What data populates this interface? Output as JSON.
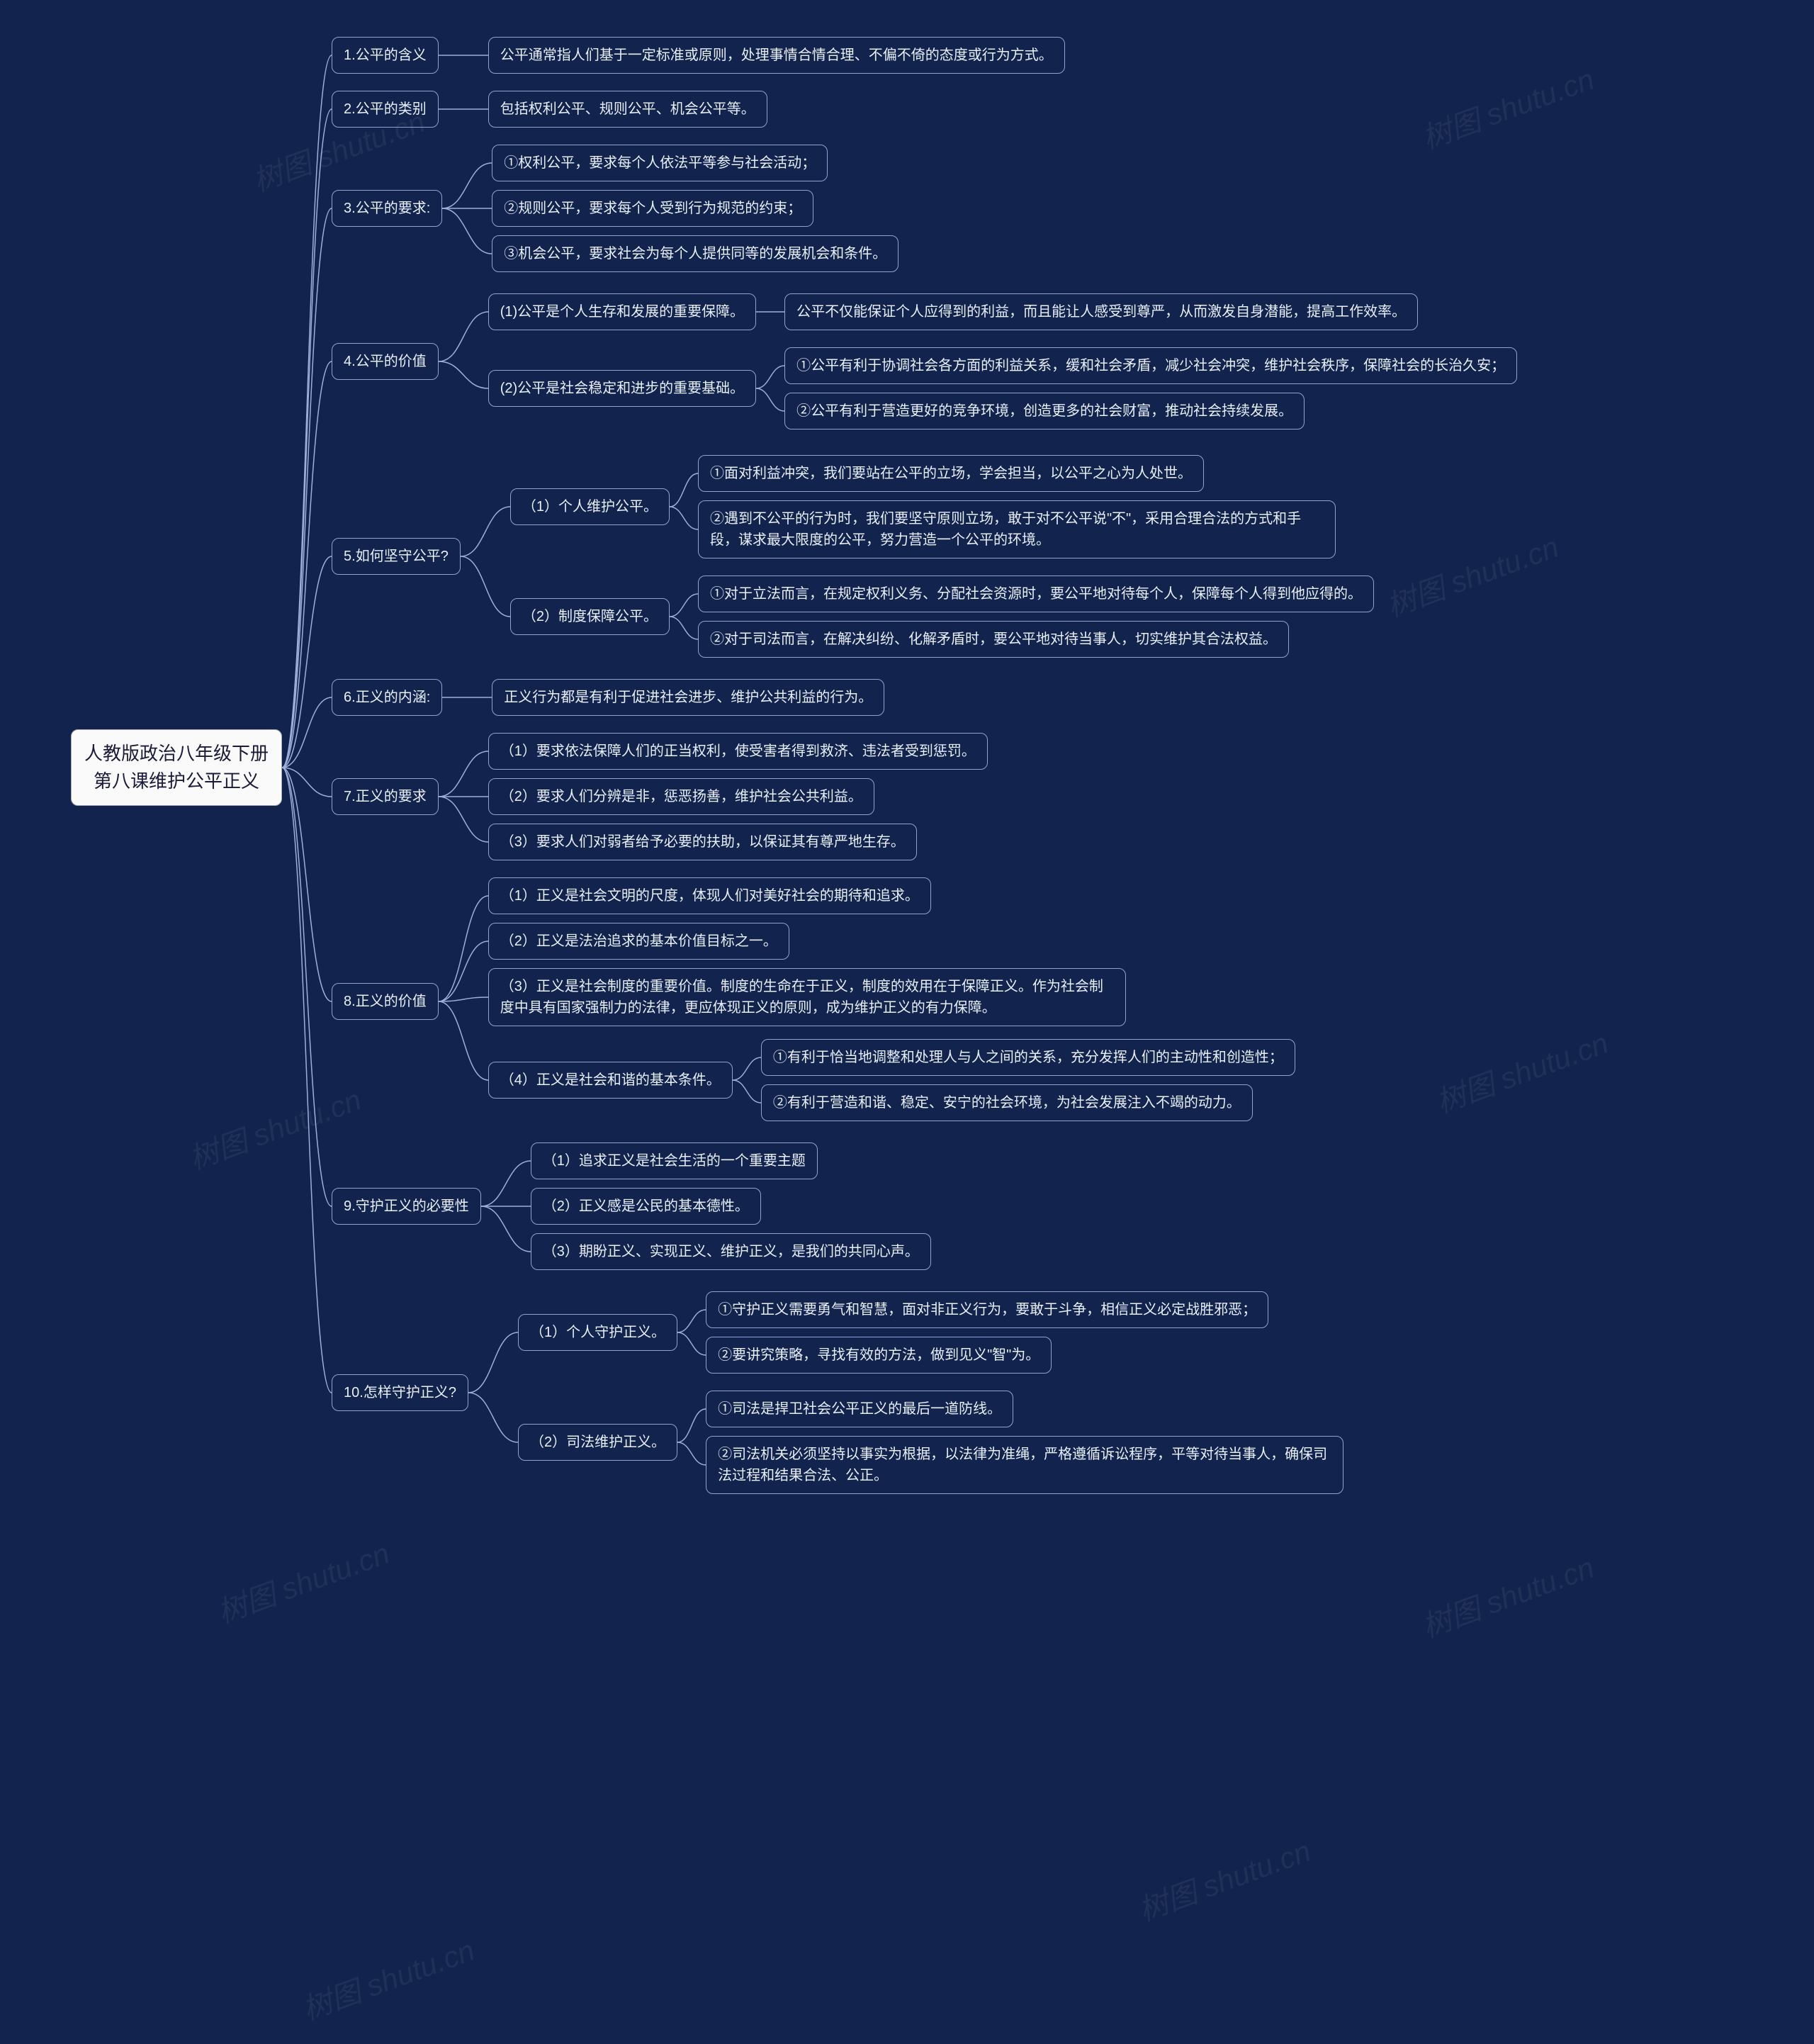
{
  "background_color": "#12234d",
  "root_bg": "#fafafa",
  "root_fg": "#1a1a3a",
  "node_border": "#8fa3d6",
  "node_fg": "#e8eefb",
  "line_color": "#9db0dc",
  "watermark_text": "树图 shutu.cn",
  "root": {
    "title_line1": "人教版政治八年级下册",
    "title_line2": "第八课维护公平正义"
  },
  "branches": [
    {
      "label": "1.公平的含义",
      "children": [
        {
          "label": "公平通常指人们基于一定标准或原则，处理事情合情合理、不偏不倚的态度或行为方式。"
        }
      ]
    },
    {
      "label": "2.公平的类别",
      "children": [
        {
          "label": "包括权利公平、规则公平、机会公平等。"
        }
      ]
    },
    {
      "label": "3.公平的要求:",
      "children": [
        {
          "label": "①权利公平，要求每个人依法平等参与社会活动；"
        },
        {
          "label": "②规则公平，要求每个人受到行为规范的约束；"
        },
        {
          "label": "③机会公平，要求社会为每个人提供同等的发展机会和条件。"
        }
      ]
    },
    {
      "label": "4.公平的价值",
      "children": [
        {
          "label": "(1)公平是个人生存和发展的重要保障。",
          "children": [
            {
              "label": "公平不仅能保证个人应得到的利益，而且能让人感受到尊严，从而激发自身潜能，提高工作效率。"
            }
          ]
        },
        {
          "label": "(2)公平是社会稳定和进步的重要基础。",
          "children": [
            {
              "label": "①公平有利于协调社会各方面的利益关系，缓和社会矛盾，减少社会冲突，维护社会秩序，保障社会的长治久安；"
            },
            {
              "label": "②公平有利于营造更好的竞争环境，创造更多的社会财富，推动社会持续发展。"
            }
          ]
        }
      ]
    },
    {
      "label": "5.如何坚守公平?",
      "children": [
        {
          "label": "（1）个人维护公平。",
          "children": [
            {
              "label": "①面对利益冲突，我们要站在公平的立场，学会担当，以公平之心为人处世。"
            },
            {
              "label": "②遇到不公平的行为时，我们要坚守原则立场，敢于对不公平说\"不\"，采用合理合法的方式和手段，谋求最大限度的公平，努力营造一个公平的环境。",
              "wrap": true
            }
          ]
        },
        {
          "label": "（2）制度保障公平。",
          "children": [
            {
              "label": "①对于立法而言，在规定权利义务、分配社会资源时，要公平地对待每个人，保障每个人得到他应得的。"
            },
            {
              "label": "②对于司法而言，在解决纠纷、化解矛盾时，要公平地对待当事人，切实维护其合法权益。"
            }
          ]
        }
      ]
    },
    {
      "label": "6.正义的内涵:",
      "children": [
        {
          "label": "正义行为都是有利于促进社会进步、维护公共利益的行为。"
        }
      ]
    },
    {
      "label": "7.正义的要求",
      "children": [
        {
          "label": "（1）要求依法保障人们的正当权利，使受害者得到救济、违法者受到惩罚。"
        },
        {
          "label": "（2）要求人们分辨是非，惩恶扬善，维护社会公共利益。"
        },
        {
          "label": "（3）要求人们对弱者给予必要的扶助，以保证其有尊严地生存。"
        }
      ]
    },
    {
      "label": "8.正义的价值",
      "children": [
        {
          "label": "（1）正义是社会文明的尺度，体现人们对美好社会的期待和追求。"
        },
        {
          "label": "（2）正义是法治追求的基本价值目标之一。"
        },
        {
          "label": "（3）正义是社会制度的重要价值。制度的生命在于正义，制度的效用在于保障正义。作为社会制度中具有国家强制力的法律，更应体现正义的原则，成为维护正义的有力保障。",
          "wrap": true
        },
        {
          "label": "（4）正义是社会和谐的基本条件。",
          "children": [
            {
              "label": "①有利于恰当地调整和处理人与人之间的关系，充分发挥人们的主动性和创造性；"
            },
            {
              "label": "②有利于营造和谐、稳定、安宁的社会环境，为社会发展注入不竭的动力。"
            }
          ]
        }
      ]
    },
    {
      "label": "9.守护正义的必要性",
      "children": [
        {
          "label": "（1）追求正义是社会生活的一个重要主题"
        },
        {
          "label": "（2）正义感是公民的基本德性。"
        },
        {
          "label": "（3）期盼正义、实现正义、维护正义，是我们的共同心声。"
        }
      ]
    },
    {
      "label": "10.怎样守护正义?",
      "children": [
        {
          "label": "（1）个人守护正义。",
          "children": [
            {
              "label": "①守护正义需要勇气和智慧，面对非正义行为，要敢于斗争，相信正义必定战胜邪恶；"
            },
            {
              "label": "②要讲究策略，寻找有效的方法，做到见义\"智\"为。"
            }
          ]
        },
        {
          "label": "（2）司法维护正义。",
          "children": [
            {
              "label": "①司法是捍卫社会公平正义的最后一道防线。"
            },
            {
              "label": "②司法机关必须坚持以事实为根据，以法律为准绳，严格遵循诉讼程序，平等对待当事人，确保司法过程和结果合法、公正。",
              "wrap": true
            }
          ]
        }
      ]
    }
  ]
}
